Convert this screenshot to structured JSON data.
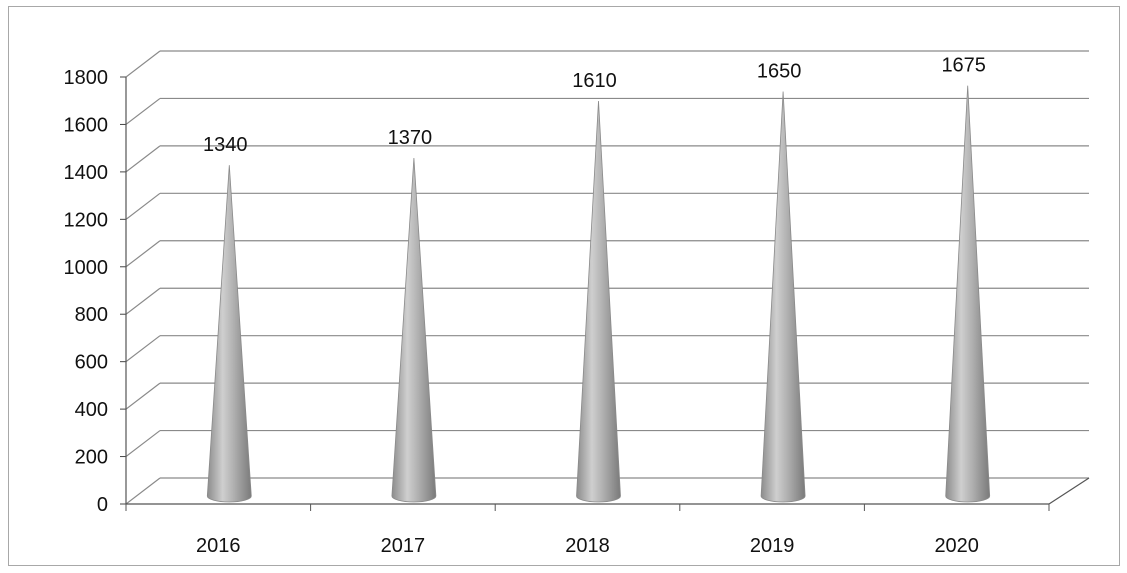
{
  "chart_data": {
    "type": "bar",
    "style": "3d-cone",
    "title": "",
    "xlabel": "",
    "ylabel": "",
    "categories": [
      "2016",
      "2017",
      "2018",
      "2019",
      "2020"
    ],
    "values": [
      1340,
      1370,
      1610,
      1650,
      1675
    ],
    "data_labels": [
      "1340",
      "1370",
      "1610",
      "1650",
      "1675"
    ],
    "ylim": [
      0,
      1800
    ],
    "yticks": [
      "0",
      "200",
      "400",
      "600",
      "800",
      "1000",
      "1200",
      "1400",
      "1600",
      "1800"
    ],
    "grid": true,
    "legend": "none",
    "colors": {
      "cone": "#a9a9a9",
      "cone_dark": "#7a7a7a",
      "cone_light": "#d6d6d6",
      "grid": "#8a8a8a"
    }
  }
}
